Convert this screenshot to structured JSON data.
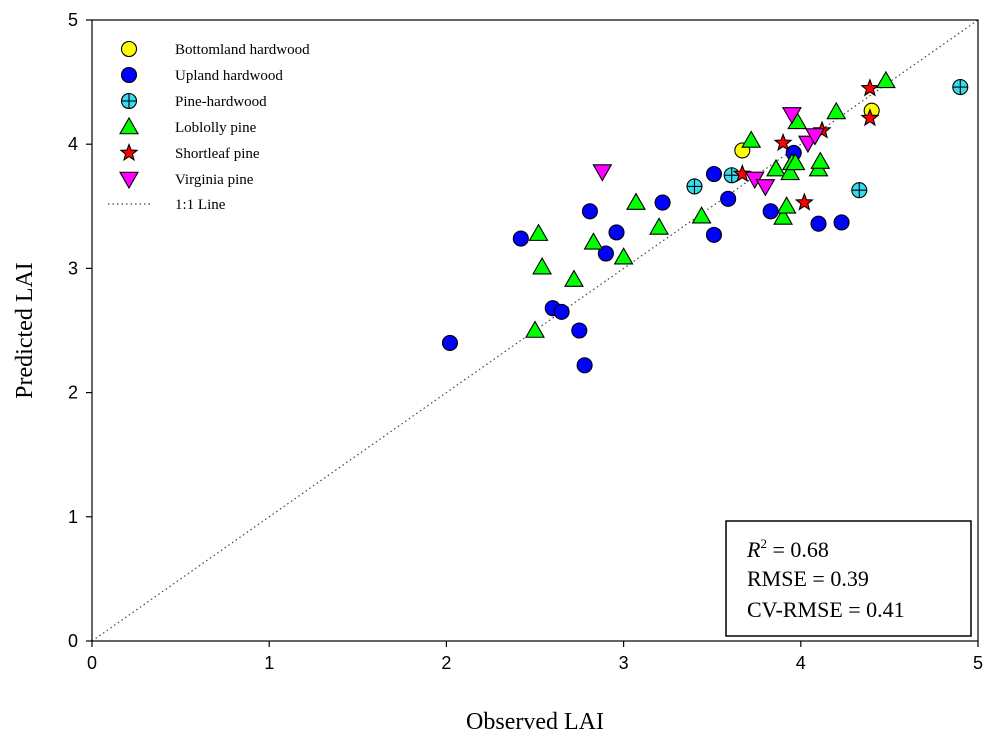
{
  "chart_data": {
    "type": "scatter",
    "xlabel": "Observed LAI",
    "ylabel": "Predicted LAI",
    "xlim": [
      0,
      5
    ],
    "ylim": [
      0,
      5
    ],
    "xticks": [
      "0",
      "1",
      "2",
      "3",
      "4",
      "5"
    ],
    "yticks": [
      "0",
      "1",
      "2",
      "3",
      "4",
      "5"
    ],
    "grid": false,
    "legend_position": "top-left",
    "series": [
      {
        "name": "Bottomland hardwood",
        "marker": "circle",
        "color": "#ffff00",
        "points": [
          [
            3.67,
            3.95
          ],
          [
            4.4,
            4.27
          ]
        ]
      },
      {
        "name": "Upland hardwood",
        "marker": "circle",
        "color": "#0000ff",
        "points": [
          [
            2.02,
            2.4
          ],
          [
            2.42,
            3.24
          ],
          [
            2.6,
            2.68
          ],
          [
            2.65,
            2.65
          ],
          [
            2.75,
            2.5
          ],
          [
            2.78,
            2.22
          ],
          [
            2.81,
            3.46
          ],
          [
            2.9,
            3.12
          ],
          [
            2.96,
            3.29
          ],
          [
            3.22,
            3.53
          ],
          [
            3.51,
            3.76
          ],
          [
            3.51,
            3.27
          ],
          [
            3.59,
            3.56
          ],
          [
            3.83,
            3.46
          ],
          [
            3.96,
            3.93
          ],
          [
            4.1,
            3.36
          ],
          [
            4.23,
            3.37
          ]
        ]
      },
      {
        "name": "Pine-hardwood",
        "marker": "circle-cross",
        "color": "#33ddee",
        "points": [
          [
            3.4,
            3.66
          ],
          [
            3.61,
            3.75
          ],
          [
            4.33,
            3.63
          ],
          [
            4.9,
            4.46
          ]
        ]
      },
      {
        "name": "Loblolly pine",
        "marker": "triangle-up",
        "color": "#00ff00",
        "points": [
          [
            2.5,
            2.5
          ],
          [
            2.52,
            3.28
          ],
          [
            2.54,
            3.01
          ],
          [
            2.72,
            2.91
          ],
          [
            2.83,
            3.21
          ],
          [
            3.0,
            3.09
          ],
          [
            3.07,
            3.53
          ],
          [
            3.2,
            3.33
          ],
          [
            3.44,
            3.42
          ],
          [
            3.72,
            4.03
          ],
          [
            3.86,
            3.8
          ],
          [
            3.9,
            3.41
          ],
          [
            3.92,
            3.5
          ],
          [
            3.94,
            3.77
          ],
          [
            3.95,
            3.85
          ],
          [
            3.97,
            3.85
          ],
          [
            3.98,
            4.18
          ],
          [
            4.1,
            3.8
          ],
          [
            4.11,
            3.86
          ],
          [
            4.2,
            4.26
          ],
          [
            4.48,
            4.51
          ]
        ]
      },
      {
        "name": "Shortleaf pine",
        "marker": "star",
        "color": "#ff0000",
        "points": [
          [
            3.67,
            3.76
          ],
          [
            3.9,
            4.01
          ],
          [
            4.02,
            3.53
          ],
          [
            4.12,
            4.11
          ],
          [
            4.39,
            4.45
          ],
          [
            4.39,
            4.21
          ]
        ]
      },
      {
        "name": "Virginia pine",
        "marker": "triangle-down",
        "color": "#ff00ff",
        "points": [
          [
            2.88,
            3.78
          ],
          [
            3.74,
            3.72
          ],
          [
            3.8,
            3.66
          ],
          [
            3.95,
            4.24
          ],
          [
            4.04,
            4.01
          ],
          [
            4.08,
            4.07
          ]
        ]
      }
    ],
    "reference_line": {
      "name": "1:1 Line",
      "from": [
        0,
        0
      ],
      "to": [
        5,
        5
      ],
      "style": "dotted"
    },
    "stats": {
      "r2_symbol": "R",
      "r2_superscript": "2",
      "r2_value": " = 0.68",
      "rmse": "RMSE = 0.39",
      "cv_rmse": "CV-RMSE = 0.41"
    }
  }
}
